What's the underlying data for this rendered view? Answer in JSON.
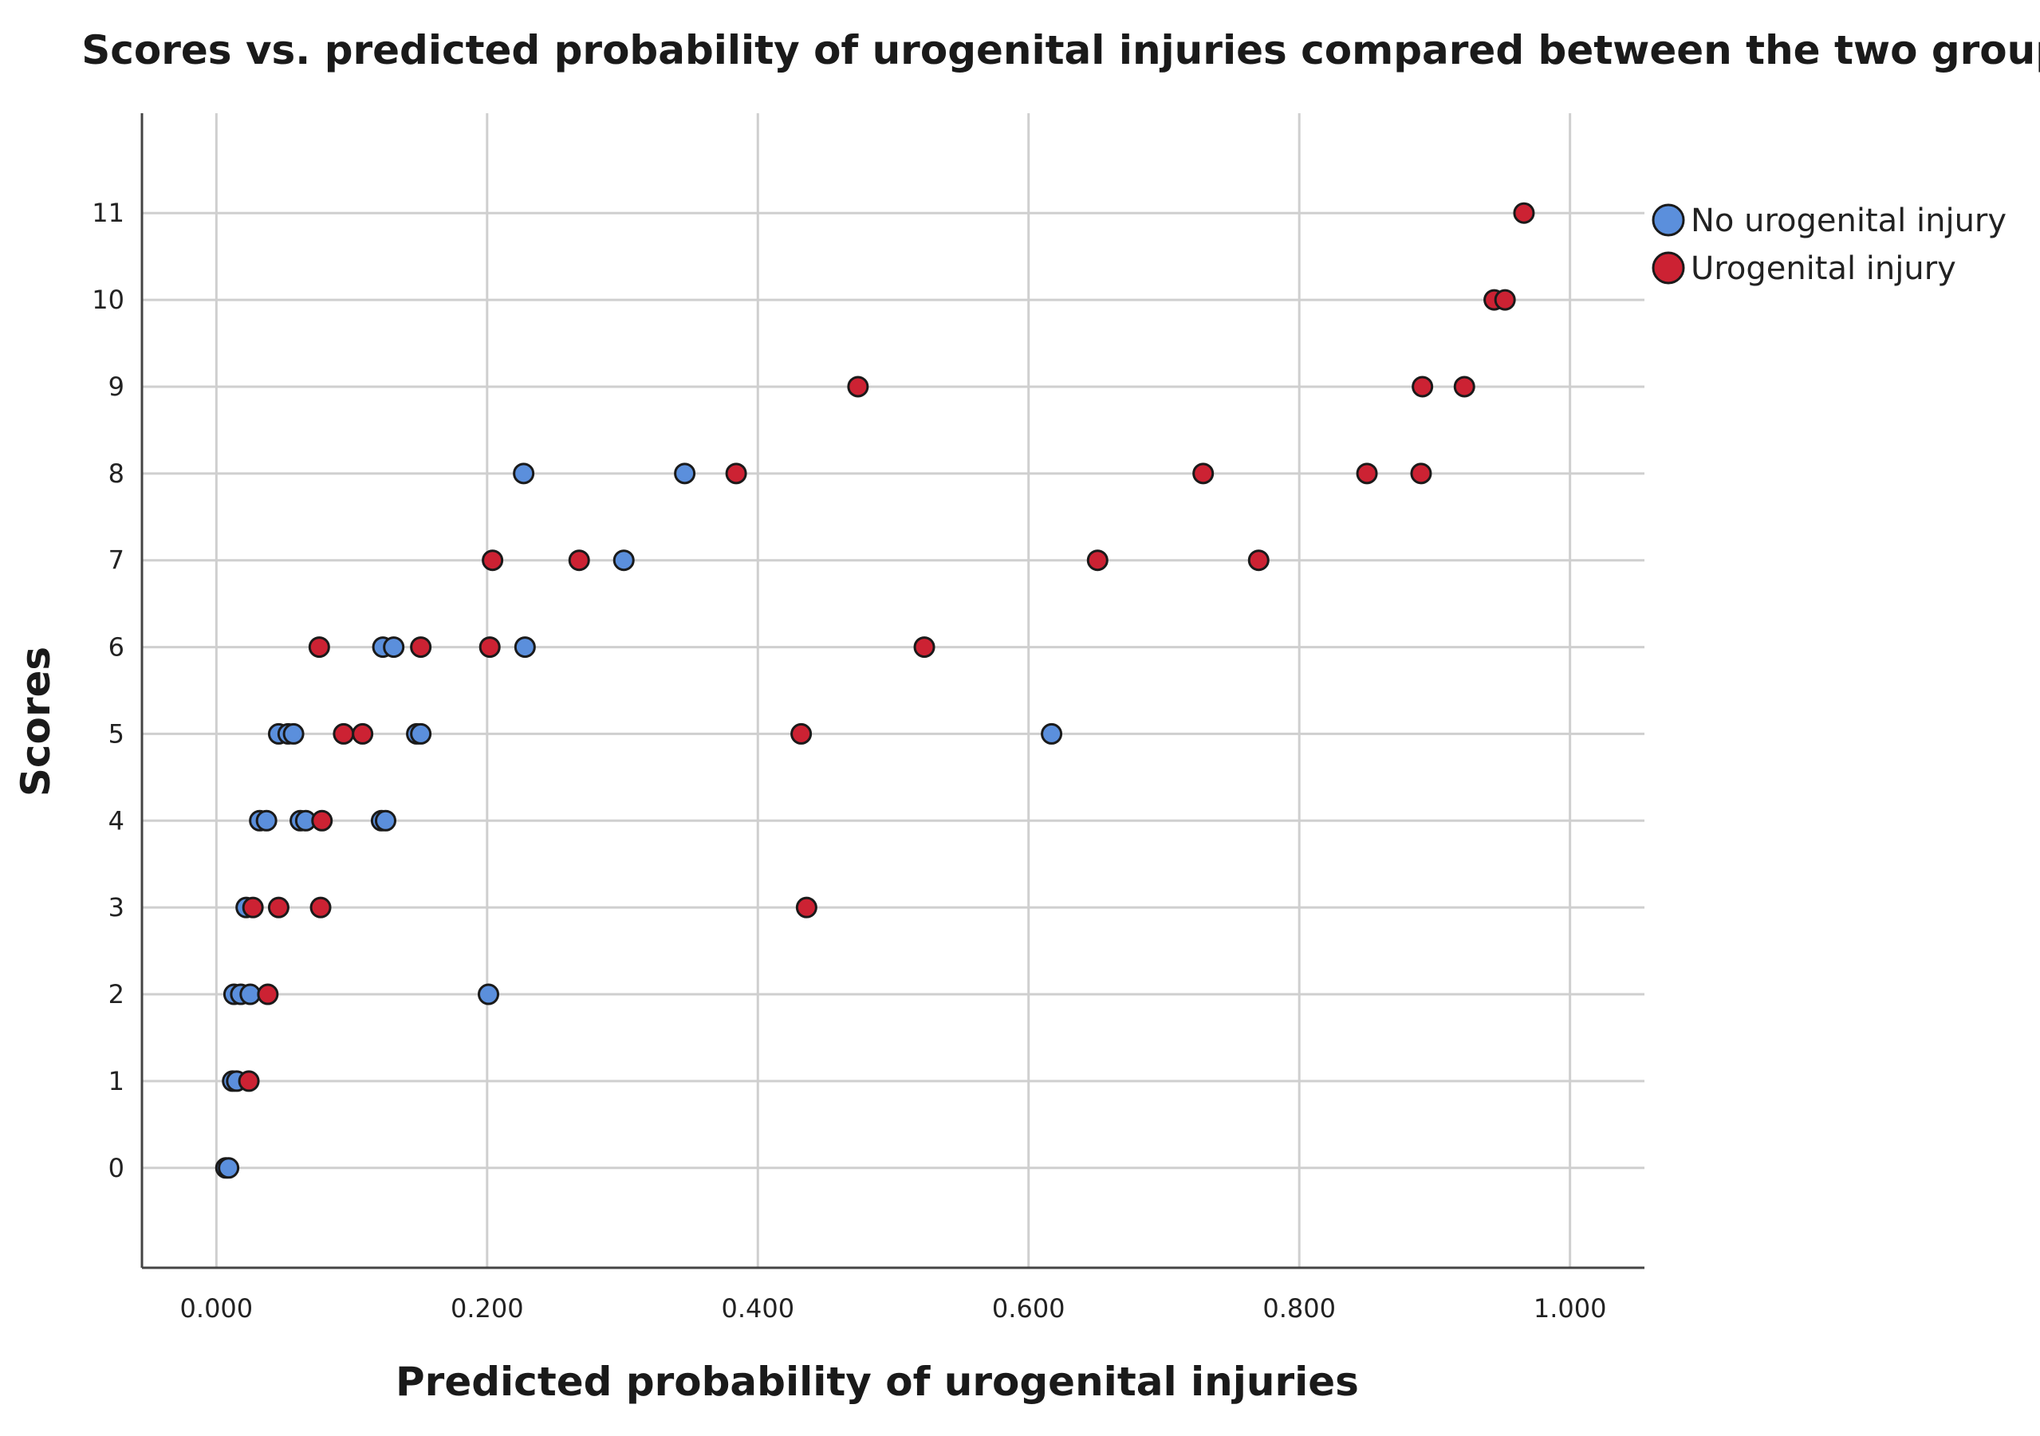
{
  "chart_data": {
    "type": "scatter",
    "title": "Scores vs. predicted probability of urogenital injuries compared between the two groups",
    "xlabel": "Predicted probability of urogenital injuries",
    "ylabel": "Scores",
    "xlim": [
      -0.055,
      1.055
    ],
    "ylim": [
      -1.15,
      12.15
    ],
    "xticks": [
      {
        "value": 0.0,
        "label": "0.000"
      },
      {
        "value": 0.2,
        "label": "0.200"
      },
      {
        "value": 0.4,
        "label": "0.400"
      },
      {
        "value": 0.6,
        "label": "0.600"
      },
      {
        "value": 0.8,
        "label": "0.800"
      },
      {
        "value": 1.0,
        "label": "1.000"
      }
    ],
    "yticks": [
      {
        "value": 0,
        "label": "0"
      },
      {
        "value": 1,
        "label": "1"
      },
      {
        "value": 2,
        "label": "2"
      },
      {
        "value": 3,
        "label": "3"
      },
      {
        "value": 4,
        "label": "4"
      },
      {
        "value": 5,
        "label": "5"
      },
      {
        "value": 6,
        "label": "6"
      },
      {
        "value": 7,
        "label": "7"
      },
      {
        "value": 8,
        "label": "8"
      },
      {
        "value": 9,
        "label": "9"
      },
      {
        "value": 10,
        "label": "10"
      },
      {
        "value": 11,
        "label": "11"
      }
    ],
    "grid": true,
    "legend_position": "top-right",
    "series": [
      {
        "name": "No urogenital injury",
        "color": "#5b8fdc",
        "points": [
          {
            "x": 0.007,
            "y": 0
          },
          {
            "x": 0.009,
            "y": 0
          },
          {
            "x": 0.012,
            "y": 1
          },
          {
            "x": 0.015,
            "y": 1
          },
          {
            "x": 0.013,
            "y": 2
          },
          {
            "x": 0.018,
            "y": 2
          },
          {
            "x": 0.025,
            "y": 2
          },
          {
            "x": 0.022,
            "y": 3
          },
          {
            "x": 0.032,
            "y": 4
          },
          {
            "x": 0.037,
            "y": 4
          },
          {
            "x": 0.062,
            "y": 4
          },
          {
            "x": 0.066,
            "y": 4
          },
          {
            "x": 0.122,
            "y": 4
          },
          {
            "x": 0.125,
            "y": 4
          },
          {
            "x": 0.046,
            "y": 5
          },
          {
            "x": 0.053,
            "y": 5
          },
          {
            "x": 0.057,
            "y": 5
          },
          {
            "x": 0.148,
            "y": 5
          },
          {
            "x": 0.151,
            "y": 5
          },
          {
            "x": 0.617,
            "y": 5
          },
          {
            "x": 0.123,
            "y": 6
          },
          {
            "x": 0.131,
            "y": 6
          },
          {
            "x": 0.228,
            "y": 6
          },
          {
            "x": 0.301,
            "y": 7
          },
          {
            "x": 0.227,
            "y": 8
          },
          {
            "x": 0.346,
            "y": 8
          },
          {
            "x": 0.201,
            "y": 2
          }
        ]
      },
      {
        "name": "Urogenital injury",
        "color": "#cc2233",
        "points": [
          {
            "x": 0.024,
            "y": 1
          },
          {
            "x": 0.038,
            "y": 2
          },
          {
            "x": 0.027,
            "y": 3
          },
          {
            "x": 0.046,
            "y": 3
          },
          {
            "x": 0.077,
            "y": 3
          },
          {
            "x": 0.436,
            "y": 3
          },
          {
            "x": 0.078,
            "y": 4
          },
          {
            "x": 0.094,
            "y": 5
          },
          {
            "x": 0.108,
            "y": 5
          },
          {
            "x": 0.432,
            "y": 5
          },
          {
            "x": 0.076,
            "y": 6
          },
          {
            "x": 0.151,
            "y": 6
          },
          {
            "x": 0.202,
            "y": 6
          },
          {
            "x": 0.523,
            "y": 6
          },
          {
            "x": 0.204,
            "y": 7
          },
          {
            "x": 0.268,
            "y": 7
          },
          {
            "x": 0.651,
            "y": 7
          },
          {
            "x": 0.77,
            "y": 7
          },
          {
            "x": 0.384,
            "y": 8
          },
          {
            "x": 0.729,
            "y": 8
          },
          {
            "x": 0.85,
            "y": 8
          },
          {
            "x": 0.89,
            "y": 8
          },
          {
            "x": 0.474,
            "y": 9
          },
          {
            "x": 0.891,
            "y": 9
          },
          {
            "x": 0.922,
            "y": 9
          },
          {
            "x": 0.944,
            "y": 10
          },
          {
            "x": 0.952,
            "y": 10
          },
          {
            "x": 0.966,
            "y": 11
          }
        ]
      }
    ]
  }
}
